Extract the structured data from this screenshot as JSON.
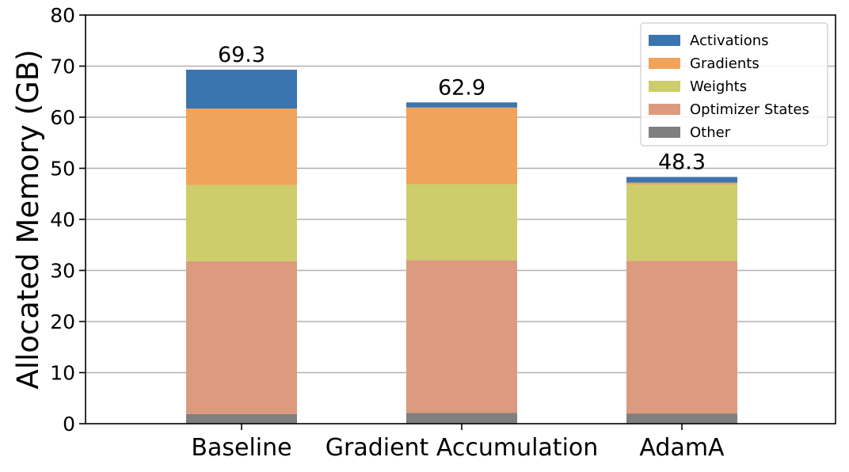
{
  "chart_data": {
    "type": "bar",
    "stacked": true,
    "categories": [
      "Baseline",
      "Gradient Accumulation",
      "AdamA"
    ],
    "series": [
      {
        "name": "Other",
        "color": "#7f7f7f",
        "values": [
          1.9,
          2.1,
          2.0
        ]
      },
      {
        "name": "Optimizer States",
        "color": "#dc9a7e",
        "values": [
          29.9,
          29.9,
          29.9
        ]
      },
      {
        "name": "Weights",
        "color": "#cdcd6c",
        "values": [
          14.9,
          14.9,
          14.9
        ]
      },
      {
        "name": "Gradients",
        "color": "#f0a35b",
        "values": [
          15.0,
          15.0,
          0.4
        ]
      },
      {
        "name": "Activations",
        "color": "#3a75b0",
        "values": [
          7.6,
          1.0,
          1.1
        ]
      }
    ],
    "totals": [
      69.3,
      62.9,
      48.3
    ],
    "total_labels": [
      "69.3",
      "62.9",
      "48.3"
    ],
    "xlabel": "",
    "ylabel": "Allocated Memory (GB)",
    "ylim": [
      0,
      80
    ],
    "yticks": [
      0,
      10,
      20,
      30,
      40,
      50,
      60,
      70,
      80
    ],
    "grid": "horizontal",
    "legend": {
      "placement": "top-right",
      "order": [
        "Activations",
        "Gradients",
        "Weights",
        "Optimizer States",
        "Other"
      ]
    }
  }
}
